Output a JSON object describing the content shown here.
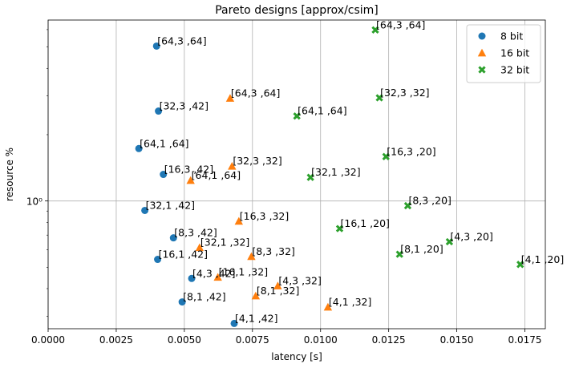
{
  "chart_data": {
    "type": "scatter",
    "title": "Pareto designs [approx/csim]",
    "xlabel": "latency [s]",
    "ylabel": "resource %",
    "xlim": [
      0.0,
      0.01825
    ],
    "ylim": [
      0.263,
      6.63
    ],
    "yscale": "log",
    "grid": true,
    "legend_position": "top-right",
    "x_ticks": [
      "0.0000",
      "0.0025",
      "0.0050",
      "0.0075",
      "0.0100",
      "0.0125",
      "0.0150",
      "0.0175"
    ],
    "x_tick_values": [
      0.0,
      0.0025,
      0.005,
      0.0075,
      0.01,
      0.0125,
      0.015,
      0.0175
    ],
    "y_ticks": [
      "10⁰"
    ],
    "y_tick_values": [
      1.0
    ],
    "series": [
      {
        "name": "8 bit",
        "color": "#1f77b4",
        "marker": "circle",
        "points": [
          {
            "x": 0.00398,
            "y": 5.05,
            "label": "[64,3 ,64]"
          },
          {
            "x": 0.00405,
            "y": 2.56,
            "label": "[32,3 ,42]"
          },
          {
            "x": 0.00333,
            "y": 1.73,
            "label": "[64,1 ,64]"
          },
          {
            "x": 0.00423,
            "y": 1.32,
            "label": "[16,3 ,42]"
          },
          {
            "x": 0.00355,
            "y": 0.906,
            "label": "[32,1 ,42]"
          },
          {
            "x": 0.0046,
            "y": 0.68,
            "label": "[8,3 ,42]"
          },
          {
            "x": 0.00402,
            "y": 0.543,
            "label": "[16,1 ,42]"
          },
          {
            "x": 0.00527,
            "y": 0.445,
            "label": "[4,3 ,42]"
          },
          {
            "x": 0.00492,
            "y": 0.348,
            "label": "[8,1 ,42]"
          },
          {
            "x": 0.00683,
            "y": 0.278,
            "label": "[4,1 ,42]"
          }
        ]
      },
      {
        "name": "16 bit",
        "color": "#ff7f0e",
        "marker": "triangle",
        "points": [
          {
            "x": 0.00668,
            "y": 2.93,
            "label": "[64,3 ,64]"
          },
          {
            "x": 0.00675,
            "y": 1.44,
            "label": "[32,3 ,32]"
          },
          {
            "x": 0.00523,
            "y": 1.24,
            "label": "[64,1 ,64]"
          },
          {
            "x": 0.007,
            "y": 0.81,
            "label": "[16,3 ,32]"
          },
          {
            "x": 0.00556,
            "y": 0.615,
            "label": "[32,1 ,32]"
          },
          {
            "x": 0.00746,
            "y": 0.56,
            "label": "[8,3 ,32]"
          },
          {
            "x": 0.00623,
            "y": 0.451,
            "label": "[16,1 ,32]"
          },
          {
            "x": 0.00843,
            "y": 0.412,
            "label": "[4,3 ,32]"
          },
          {
            "x": 0.00762,
            "y": 0.371,
            "label": "[8,1 ,32]"
          },
          {
            "x": 0.01027,
            "y": 0.33,
            "label": "[4,1 ,32]"
          }
        ]
      },
      {
        "name": "32 bit",
        "color": "#2ca02c",
        "marker": "x",
        "points": [
          {
            "x": 0.01201,
            "y": 5.98,
            "label": "[64,3 ,64]"
          },
          {
            "x": 0.01216,
            "y": 2.94,
            "label": "[32,3 ,32]"
          },
          {
            "x": 0.00913,
            "y": 2.43,
            "label": "[64,1 ,64]"
          },
          {
            "x": 0.0124,
            "y": 1.59,
            "label": "[16,3 ,20]"
          },
          {
            "x": 0.00963,
            "y": 1.28,
            "label": "[32,1 ,32]"
          },
          {
            "x": 0.0132,
            "y": 0.952,
            "label": "[8,3 ,20]"
          },
          {
            "x": 0.0107,
            "y": 0.749,
            "label": "[16,1 ,20]"
          },
          {
            "x": 0.01473,
            "y": 0.653,
            "label": "[4,3 ,20]"
          },
          {
            "x": 0.0129,
            "y": 0.573,
            "label": "[8,1 ,20]"
          },
          {
            "x": 0.01733,
            "y": 0.515,
            "label": "[4,1 ,20]"
          }
        ]
      }
    ]
  }
}
